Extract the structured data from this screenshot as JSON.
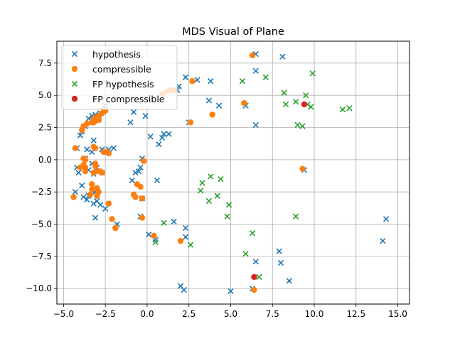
{
  "chart_data": {
    "type": "scatter",
    "title": "MDS Visual of Plane",
    "xlabel": "",
    "ylabel": "",
    "xlim": [
      -5.4,
      15.7
    ],
    "ylim": [
      -11.2,
      9.2
    ],
    "xticks": [
      -5,
      -2.5,
      0,
      2.5,
      5,
      7.5,
      10,
      12.5,
      15
    ],
    "xtick_labels": [
      "−5.0",
      "−2.5",
      "0.0",
      "2.5",
      "5.0",
      "7.5",
      "10.0",
      "12.5",
      "15.0"
    ],
    "yticks": [
      -10,
      -7.5,
      -5,
      -2.5,
      0,
      2.5,
      5,
      7.5
    ],
    "ytick_labels": [
      "−10.0",
      "−7.5",
      "−5.0",
      "−2.5",
      "0.0",
      "2.5",
      "5.0",
      "7.5"
    ],
    "grid": true,
    "legend_position": "top-left",
    "series": [
      {
        "name": "hypothesis",
        "marker": "x",
        "color": "#1f77b4",
        "points": [
          [
            6.5,
            8.2
          ],
          [
            8.1,
            8.0
          ],
          [
            -2.2,
            6.9
          ],
          [
            2.3,
            6.4
          ],
          [
            6.5,
            6.9
          ],
          [
            3.0,
            6.2
          ],
          [
            3.8,
            6.1
          ],
          [
            1.9,
            5.7
          ],
          [
            1.8,
            5.4
          ],
          [
            3.7,
            4.6
          ],
          [
            5.9,
            4.2
          ],
          [
            4.3,
            4.2
          ],
          [
            -2.5,
            4.2
          ],
          [
            -0.8,
            3.7
          ],
          [
            -0.1,
            3.4
          ],
          [
            -1.0,
            2.9
          ],
          [
            2.5,
            2.9
          ],
          [
            6.5,
            2.7
          ],
          [
            -2.6,
            3.8
          ],
          [
            -2.8,
            3.6
          ],
          [
            -3.1,
            3.5
          ],
          [
            -3.3,
            3.4
          ],
          [
            -3.5,
            3.2
          ],
          [
            -2.9,
            3.1
          ],
          [
            -3.7,
            2.6
          ],
          [
            -3.9,
            2.2
          ],
          [
            -4.0,
            1.9
          ],
          [
            -3.2,
            1.5
          ],
          [
            0.2,
            1.8
          ],
          [
            0.9,
            1.7
          ],
          [
            1.3,
            2.0
          ],
          [
            1.0,
            2.0
          ],
          [
            0.7,
            1.2
          ],
          [
            -3.6,
            0.8
          ],
          [
            -2.7,
            0.8
          ],
          [
            -2.3,
            0.8
          ],
          [
            -2.0,
            0.9
          ],
          [
            -3.3,
            0.6
          ],
          [
            -0.3,
            0.1
          ],
          [
            -4.2,
            0.9
          ],
          [
            -3.7,
            0.1
          ],
          [
            -3.3,
            -0.3
          ],
          [
            -4.2,
            -0.6
          ],
          [
            -4.1,
            -1.0
          ],
          [
            -3.5,
            -0.8
          ],
          [
            -3.2,
            -1.1
          ],
          [
            -3.0,
            -0.6
          ],
          [
            -2.7,
            -1.0
          ],
          [
            -0.7,
            -1.0
          ],
          [
            -0.5,
            -0.9
          ],
          [
            -0.4,
            -0.6
          ],
          [
            -0.9,
            -1.6
          ],
          [
            0.6,
            -1.6
          ],
          [
            -3.9,
            -2.0
          ],
          [
            -4.3,
            -2.5
          ],
          [
            -3.5,
            -2.8
          ],
          [
            -3.3,
            -2.4
          ],
          [
            -3.1,
            -2.5
          ],
          [
            -3.8,
            -2.9
          ],
          [
            -3.6,
            -3.1
          ],
          [
            -3.2,
            -3.4
          ],
          [
            -3.0,
            -3.2
          ],
          [
            -2.8,
            -3.5
          ],
          [
            -2.5,
            -3.8
          ],
          [
            -0.3,
            -3.0
          ],
          [
            -0.4,
            -4.4
          ],
          [
            -3.1,
            -4.5
          ],
          [
            -1.8,
            -5.0
          ],
          [
            0.1,
            -5.8
          ],
          [
            0.5,
            -6.2
          ],
          [
            1.6,
            -4.8
          ],
          [
            2.3,
            -5.3
          ],
          [
            2.3,
            -6.0
          ],
          [
            7.9,
            -7.1
          ],
          [
            8.0,
            -8.0
          ],
          [
            6.5,
            -7.9
          ],
          [
            8.5,
            -9.4
          ],
          [
            14.3,
            -4.6
          ],
          [
            14.1,
            -6.3
          ],
          [
            9.4,
            -0.8
          ],
          [
            2.0,
            -9.8
          ],
          [
            2.2,
            -10.1
          ],
          [
            5.0,
            -10.2
          ],
          [
            6.3,
            -10.0
          ]
        ]
      },
      {
        "name": "compressible",
        "marker": "o",
        "color": "#ff7f0e",
        "points": [
          [
            6.3,
            8.1
          ],
          [
            2.7,
            6.1
          ],
          [
            1.2,
            5.3
          ],
          [
            1.4,
            5.4
          ],
          [
            1.6,
            5.4
          ],
          [
            0.9,
            5.1
          ],
          [
            5.8,
            4.4
          ],
          [
            3.9,
            3.5
          ],
          [
            2.6,
            2.9
          ],
          [
            -2.5,
            3.8
          ],
          [
            -2.6,
            3.9
          ],
          [
            -2.7,
            3.6
          ],
          [
            -2.9,
            3.4
          ],
          [
            -3.0,
            3.3
          ],
          [
            -3.2,
            3.2
          ],
          [
            -3.1,
            3.0
          ],
          [
            -3.3,
            2.9
          ],
          [
            -3.6,
            2.8
          ],
          [
            -3.8,
            2.6
          ],
          [
            -3.9,
            2.3
          ],
          [
            -3.2,
            2.9
          ],
          [
            -2.9,
            3.1
          ],
          [
            -4.3,
            0.9
          ],
          [
            -3.2,
            1.0
          ],
          [
            -3.1,
            0.9
          ],
          [
            -2.6,
            0.6
          ],
          [
            -2.4,
            0.6
          ],
          [
            -2.3,
            0.5
          ],
          [
            -3.8,
            0.1
          ],
          [
            -3.7,
            0.0
          ],
          [
            -3.8,
            -0.4
          ],
          [
            -3.7,
            -0.6
          ],
          [
            -3.7,
            -0.9
          ],
          [
            -4.0,
            -0.6
          ],
          [
            -3.1,
            -0.3
          ],
          [
            -3.1,
            -0.5
          ],
          [
            -3.0,
            -0.9
          ],
          [
            -3.2,
            -1.0
          ],
          [
            -2.8,
            -0.9
          ],
          [
            -2.7,
            -1.0
          ],
          [
            -0.2,
            -0.1
          ],
          [
            -3.3,
            -1.9
          ],
          [
            -3.3,
            -2.3
          ],
          [
            -3.4,
            -2.7
          ],
          [
            -3.0,
            -2.2
          ],
          [
            -2.9,
            -2.5
          ],
          [
            -3.0,
            -2.8
          ],
          [
            -0.6,
            -1.9
          ],
          [
            -0.4,
            -2.1
          ],
          [
            -0.8,
            -2.7
          ],
          [
            -0.7,
            -2.9
          ],
          [
            -0.3,
            -3.0
          ],
          [
            -4.4,
            -2.9
          ],
          [
            -2.3,
            -3.4
          ],
          [
            -0.3,
            -4.5
          ],
          [
            -2.1,
            -4.6
          ],
          [
            -1.9,
            -5.3
          ],
          [
            0.4,
            -5.9
          ],
          [
            2.0,
            -6.3
          ],
          [
            9.3,
            -0.7
          ],
          [
            6.4,
            -10.1
          ]
        ]
      },
      {
        "name": "FP hypothesis",
        "marker": "x",
        "color": "#2ca02c",
        "points": [
          [
            9.9,
            6.7
          ],
          [
            7.1,
            6.4
          ],
          [
            5.7,
            6.1
          ],
          [
            8.2,
            5.2
          ],
          [
            9.5,
            5.0
          ],
          [
            8.3,
            4.3
          ],
          [
            8.9,
            4.5
          ],
          [
            9.6,
            4.3
          ],
          [
            9.8,
            4.1
          ],
          [
            11.7,
            3.9
          ],
          [
            12.1,
            4.0
          ],
          [
            9.0,
            2.7
          ],
          [
            9.3,
            2.6
          ],
          [
            3.8,
            -1.3
          ],
          [
            3.3,
            -1.8
          ],
          [
            3.2,
            -2.4
          ],
          [
            4.4,
            -1.5
          ],
          [
            4.2,
            -2.8
          ],
          [
            3.7,
            -3.2
          ],
          [
            4.9,
            -3.5
          ],
          [
            4.8,
            -4.4
          ],
          [
            8.9,
            -4.4
          ],
          [
            1.0,
            -4.9
          ],
          [
            0.5,
            -6.4
          ],
          [
            2.6,
            -6.6
          ],
          [
            6.3,
            -5.7
          ],
          [
            5.9,
            -7.3
          ],
          [
            6.7,
            -9.1
          ]
        ]
      },
      {
        "name": "FP compressible",
        "marker": "o",
        "color": "#d62728",
        "points": [
          [
            9.4,
            4.3
          ],
          [
            6.4,
            -9.1
          ]
        ]
      }
    ]
  }
}
